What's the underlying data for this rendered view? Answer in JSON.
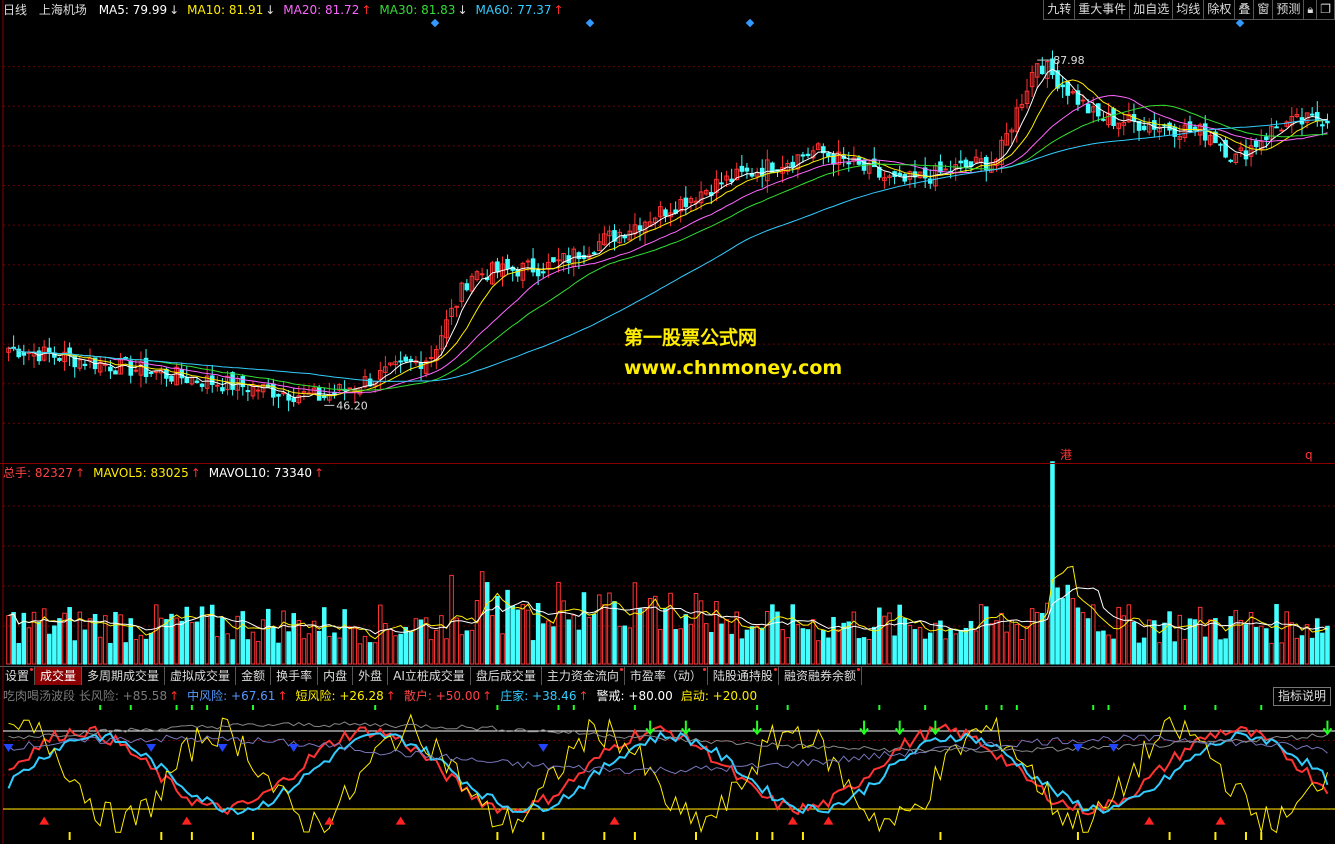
{
  "main": {
    "period": "日线",
    "stock_name": "上海机场",
    "ma": [
      {
        "label": "MA5: 79.99",
        "dir": "down",
        "color": "#ffffff"
      },
      {
        "label": "MA10: 81.91",
        "dir": "down",
        "color": "#ffee00"
      },
      {
        "label": "MA20: 81.72",
        "dir": "up",
        "color": "#ff66ff"
      },
      {
        "label": "MA30: 81.83",
        "dir": "down",
        "color": "#33dd33"
      },
      {
        "label": "MA60: 77.37",
        "dir": "up",
        "color": "#33ccff"
      }
    ],
    "high_label": "87.98",
    "low_label": "46.20",
    "hk_marker": "港",
    "q_marker": "q",
    "ylim": [
      40,
      92
    ]
  },
  "toolbar": [
    "九转",
    "重大事件",
    "加自选",
    "均线",
    "除权",
    "叠",
    "窗",
    "预测",
    "lock-icon",
    "window-icon"
  ],
  "watermark": {
    "line1": "第一股票公式网",
    "line2": "www.chnmoney.com"
  },
  "volume": {
    "labels": [
      {
        "label": "总手: 82327",
        "dir": "up",
        "color": "#ff4444"
      },
      {
        "label": "MAVOL5: 83025",
        "dir": "up",
        "color": "#ffee00"
      },
      {
        "label": "MAVOL10: 73340",
        "dir": "up",
        "color": "#ffffff"
      }
    ]
  },
  "tabs": [
    {
      "label": "设置",
      "dot": true
    },
    {
      "label": "成交量",
      "active": true
    },
    {
      "label": "多周期成交量"
    },
    {
      "label": "虚拟成交量"
    },
    {
      "label": "金额"
    },
    {
      "label": "换手率"
    },
    {
      "label": "内盘"
    },
    {
      "label": "外盘"
    },
    {
      "label": "AI立桩成交量"
    },
    {
      "label": "盘后成交量"
    },
    {
      "label": "主力资金流向",
      "dot": true
    },
    {
      "label": "市盈率（动）",
      "dot": true
    },
    {
      "label": "陆股通持股",
      "dot": true
    },
    {
      "label": "融资融券余额",
      "dot": true
    }
  ],
  "indicator": {
    "labels": [
      {
        "label": "吃肉喝汤波段 长风险: +85.58",
        "dir": "up",
        "color": "#7a7a7a"
      },
      {
        "label": "中风险: +67.61",
        "dir": "up",
        "color": "#5599ff"
      },
      {
        "label": "短风险: +26.28",
        "dir": "up",
        "color": "#ffee00"
      },
      {
        "label": "散户: +50.00",
        "dir": "up",
        "color": "#ff4444"
      },
      {
        "label": "庄家: +38.46",
        "dir": "up",
        "color": "#33ccff"
      },
      {
        "label": "警戒: +80.00",
        "dir": "",
        "color": "#ffffff"
      },
      {
        "label": "启动: +20.00",
        "dir": "",
        "color": "#ffee00"
      }
    ],
    "help": "指标说明"
  },
  "colors": {
    "up": "#ff3333",
    "down": "#44ffff"
  }
}
